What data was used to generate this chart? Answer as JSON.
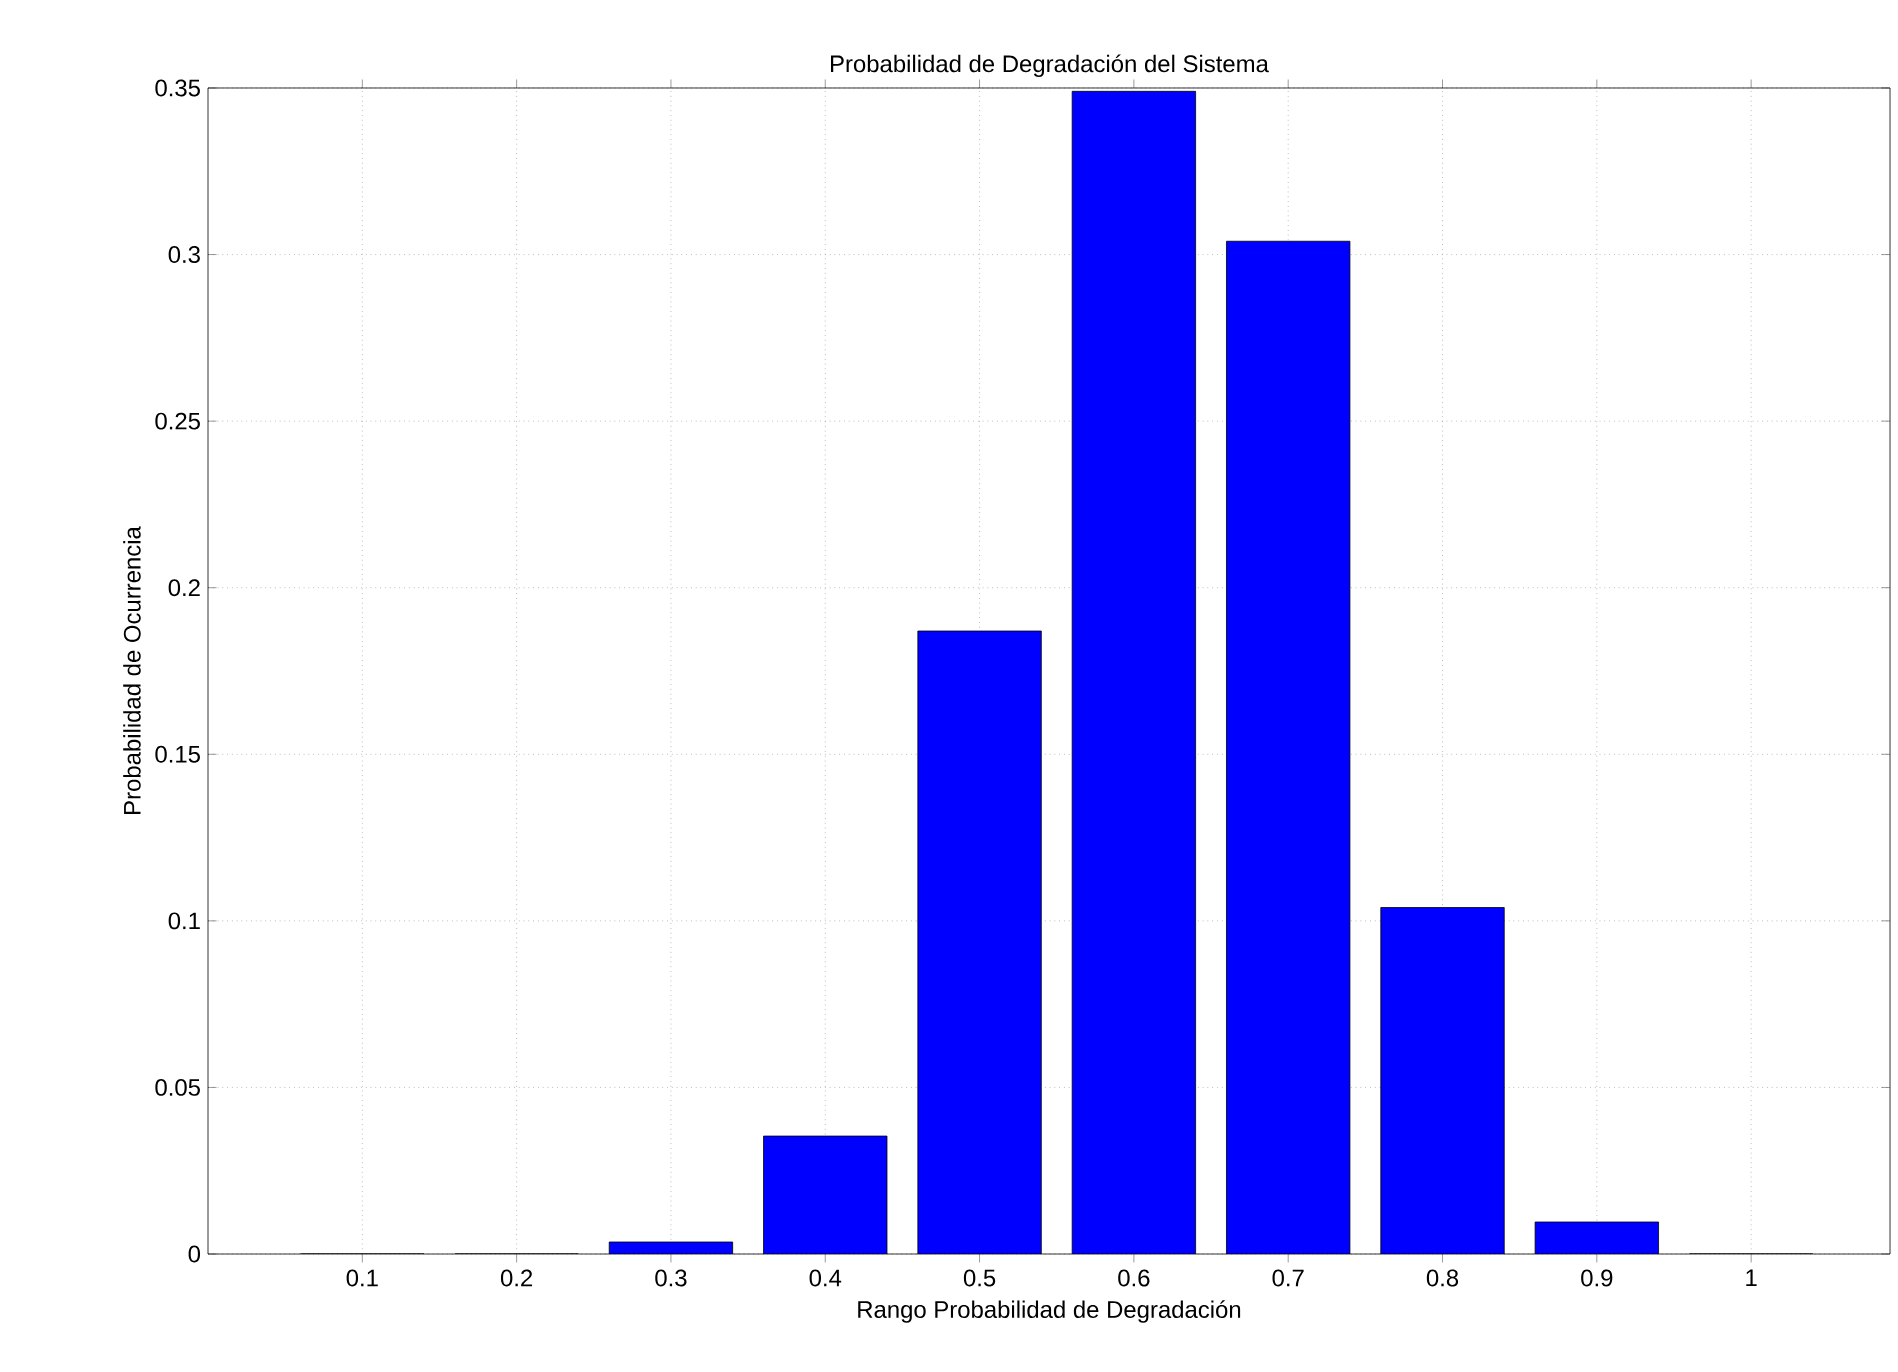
{
  "chart_data": {
    "type": "bar",
    "title": "Probabilidad de Degradación del Sistema",
    "xlabel": "Rango Probabilidad de Degradación",
    "ylabel": "Probabilidad de Ocurrencia",
    "x": [
      0.1,
      0.2,
      0.3,
      0.4,
      0.5,
      0.6,
      0.7,
      0.8,
      0.9,
      1
    ],
    "values": [
      0,
      0,
      0.0036,
      0.0354,
      0.187,
      0.349,
      0.304,
      0.104,
      0.0096,
      0
    ],
    "color": "#0000ff",
    "xlim": [
      0,
      1.09
    ],
    "xticks": [
      0.1,
      0.2,
      0.3,
      0.4,
      0.5,
      0.6,
      0.7,
      0.8,
      0.9,
      1
    ],
    "ylim": [
      0,
      0.35
    ],
    "yticks": [
      0,
      0.05,
      0.1,
      0.15,
      0.2,
      0.25,
      0.3,
      0.35
    ],
    "grid": true
  }
}
